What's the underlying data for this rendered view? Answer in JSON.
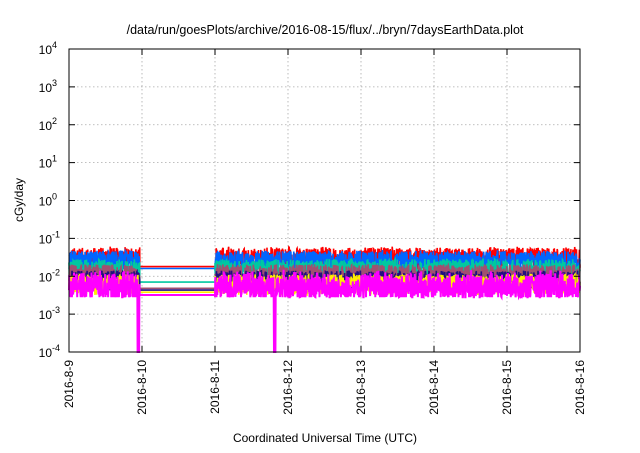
{
  "chart_data": {
    "type": "line",
    "title": "/data/run/goesPlots/archive/2016-08-15/flux/../bryn/7daysEarthData.plot",
    "xlabel": "Coordinated Universal Time (UTC)",
    "ylabel": "cGy/day",
    "yscale": "log",
    "ylim": [
      0.0001,
      10000
    ],
    "xlim": [
      "2016-8-9",
      "2016-8-16"
    ],
    "grid": true,
    "legend": "none",
    "ytick_labels": [
      {
        "base": "10",
        "exp": "-4"
      },
      {
        "base": "10",
        "exp": "-3"
      },
      {
        "base": "10",
        "exp": "-2"
      },
      {
        "base": "10",
        "exp": "-1"
      },
      {
        "base": "10",
        "exp": "0"
      },
      {
        "base": "10",
        "exp": "1"
      },
      {
        "base": "10",
        "exp": "2"
      },
      {
        "base": "10",
        "exp": "3"
      },
      {
        "base": "10",
        "exp": "4"
      }
    ],
    "xtick_labels": [
      "2016-8-9",
      "2016-8-10",
      "2016-8-11",
      "2016-8-12",
      "2016-8-13",
      "2016-8-14",
      "2016-8-15",
      "2016-8-16"
    ],
    "data_gap_days": [
      0.97,
      2.0
    ],
    "series": [
      {
        "name": "red",
        "color": "#ff0000",
        "typical": 0.03,
        "peak": 0.055,
        "gap_value": 0.018
      },
      {
        "name": "blue",
        "color": "#0066ff",
        "typical": 0.025,
        "peak": 0.04,
        "gap_value": 0.016
      },
      {
        "name": "teal",
        "color": "#00c8a0",
        "typical": 0.015,
        "peak": 0.025,
        "gap_value": 0.007
      },
      {
        "name": "brown",
        "color": "#a05070",
        "typical": 0.011,
        "peak": 0.018,
        "gap_value": 0.0048
      },
      {
        "name": "navy",
        "color": "#201080",
        "typical": 0.0075,
        "peak": 0.012,
        "gap_value": 0.0043
      },
      {
        "name": "yellow",
        "color": "#ffee00",
        "typical": 0.006,
        "peak": 0.01,
        "gap_value": 0.0038
      },
      {
        "name": "magenta",
        "color": "#ff00ff",
        "typical": 0.0055,
        "peak": 0.01,
        "gap_value": 0.0032,
        "dropouts_days": [
          0.95,
          2.82
        ]
      }
    ]
  }
}
